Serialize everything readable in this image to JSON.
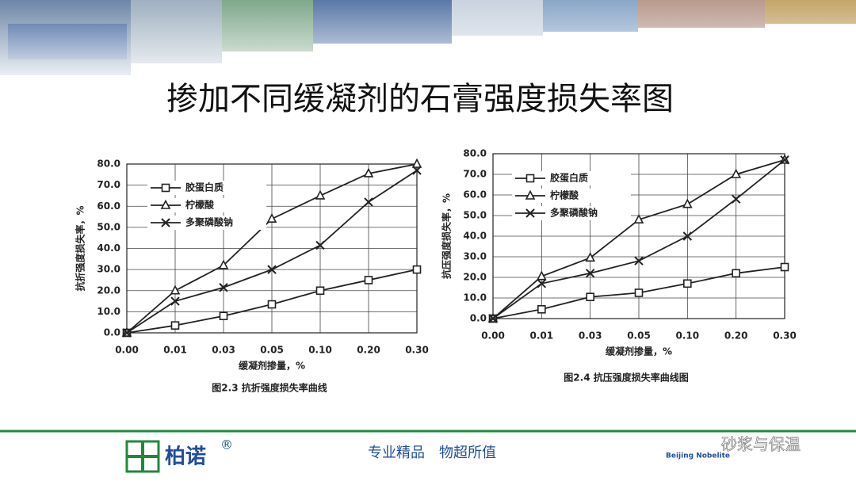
{
  "slide": {
    "title": "掺加不同缓凝剂的石膏强度损失率图",
    "brand": "柏诺",
    "registered": "®",
    "slogan": "专业精品　物超所值",
    "brand_en": "Beijing Nobelite",
    "watermark": "砂浆与保温"
  },
  "chart_data": [
    {
      "type": "line",
      "caption": "图2.3 抗折强度损失率曲线",
      "xlabel": "缓凝剂掺量，%",
      "ylabel": "抗折强度损失率，%",
      "categories": [
        "0.00",
        "0.01",
        "0.03",
        "0.05",
        "0.10",
        "0.20",
        "0.30"
      ],
      "ylim": [
        0,
        80
      ],
      "yticks": [
        {
          "value": 0,
          "label": "0.0"
        },
        {
          "value": 10,
          "label": "10.0"
        },
        {
          "value": 20,
          "label": "20.0"
        },
        {
          "value": 30,
          "label": "30.0"
        },
        {
          "value": 40,
          "label": "40.0"
        },
        {
          "value": 50,
          "label": "50.0"
        },
        {
          "value": 60,
          "label": "60.0"
        },
        {
          "value": 70,
          "label": "70.0"
        },
        {
          "value": 80,
          "label": "80.0"
        }
      ],
      "grid": true,
      "legend": "upper left",
      "series": [
        {
          "name": "胶蛋白质",
          "color": "#222222",
          "marker": "square",
          "values": [
            0,
            3.5,
            8,
            13.5,
            20,
            25,
            30
          ]
        },
        {
          "name": "柠檬酸",
          "color": "#222222",
          "marker": "triangle",
          "values": [
            0,
            20,
            32,
            54,
            65,
            75.5,
            80
          ]
        },
        {
          "name": "多聚磷酸钠",
          "color": "#222222",
          "marker": "x",
          "values": [
            0,
            15,
            21.5,
            30,
            41.5,
            62,
            77
          ]
        }
      ]
    },
    {
      "type": "line",
      "caption": "图2.4 抗压强度损失率曲线图",
      "xlabel": "缓凝剂掺量，%",
      "ylabel": "抗压强度损失率，%",
      "categories": [
        "0.00",
        "0.01",
        "0.03",
        "0.05",
        "0.10",
        "0.20",
        "0.30"
      ],
      "ylim": [
        0,
        80
      ],
      "yticks": [
        {
          "value": 0,
          "label": "0.0"
        },
        {
          "value": 10,
          "label": "10.0"
        },
        {
          "value": 20,
          "label": "20.0"
        },
        {
          "value": 30,
          "label": "30.0"
        },
        {
          "value": 40,
          "label": "40.0"
        },
        {
          "value": 50,
          "label": "50.0"
        },
        {
          "value": 60,
          "label": "60.0"
        },
        {
          "value": 70,
          "label": "70.0"
        },
        {
          "value": 80,
          "label": "80.0"
        }
      ],
      "grid": true,
      "legend": "upper left",
      "series": [
        {
          "name": "胶蛋白质",
          "color": "#222222",
          "marker": "square",
          "values": [
            0,
            4.5,
            10.5,
            12.5,
            17,
            22,
            25
          ]
        },
        {
          "name": "柠檬酸",
          "color": "#222222",
          "marker": "triangle",
          "values": [
            0,
            20.5,
            29.5,
            48,
            55.5,
            70,
            77
          ]
        },
        {
          "name": "多聚磷酸钠",
          "color": "#222222",
          "marker": "x",
          "values": [
            0,
            17,
            22,
            28,
            40,
            58,
            77
          ]
        }
      ]
    }
  ]
}
